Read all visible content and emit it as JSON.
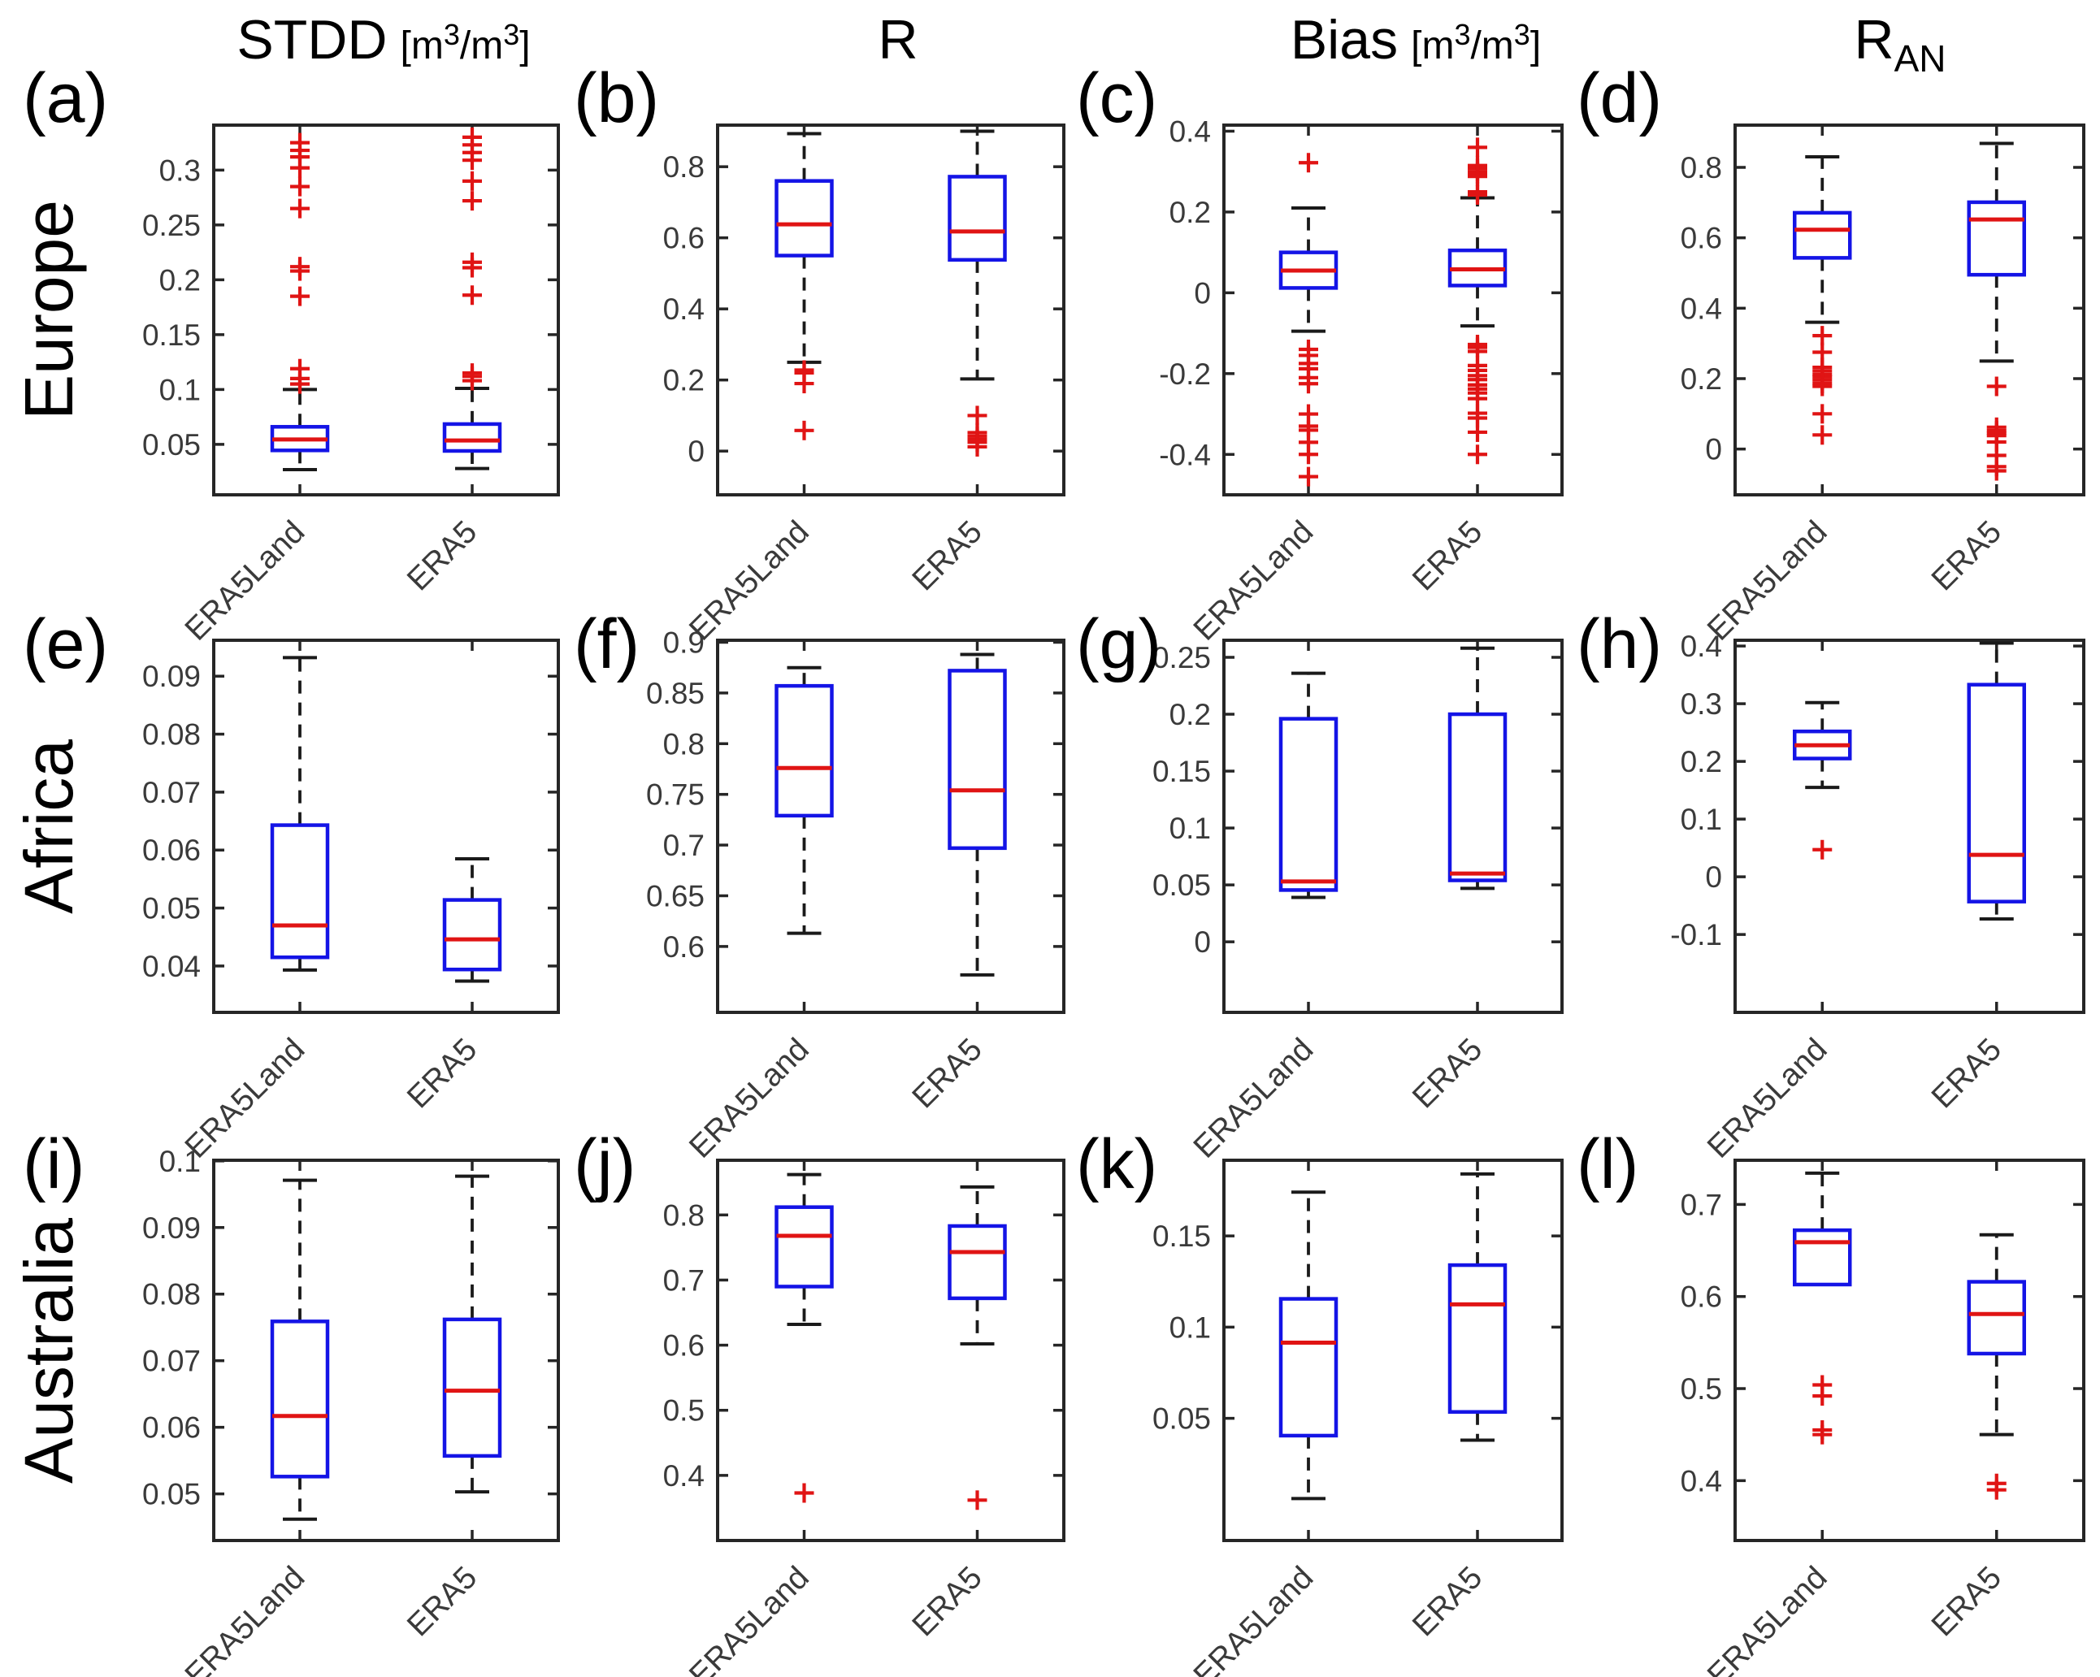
{
  "figure": {
    "columns": [
      {
        "label": "STDD",
        "unit": [
          "[m",
          "3",
          "/m",
          "3",
          "]"
        ]
      },
      {
        "label": "R"
      },
      {
        "label": "Bias",
        "unit": [
          "[m",
          "3",
          "/m",
          "3",
          "]"
        ]
      },
      {
        "label": "R",
        "sub": "AN"
      }
    ],
    "rows": [
      {
        "label": "Europe"
      },
      {
        "label": "Africa"
      },
      {
        "label": "Australia"
      }
    ]
  },
  "chart_data": {
    "type": "boxplot",
    "legend": "none",
    "box_color": "#1414e6",
    "median_color": "#e01414",
    "whisker_color": "#1a1a1a",
    "outlier_color": "#e01414",
    "x_categories": [
      "ERA5Land",
      "ERA5"
    ],
    "panels": [
      {
        "id": "a",
        "letter": "(a)",
        "region": "Europe",
        "metric": "STDD [m3/m3]",
        "ylim": [
          0.004,
          0.341
        ],
        "yticks": [
          0.05,
          0.1,
          0.15,
          0.2,
          0.25,
          0.3
        ],
        "ytick_labels": [
          "0.05",
          "0.1",
          "0.15",
          "0.2",
          "0.25",
          "0.3"
        ],
        "groups": [
          {
            "label": "ERA5Land",
            "whislo": 0.027,
            "q1": 0.0445,
            "med": 0.0545,
            "q3": 0.066,
            "whishi": 0.1,
            "outliers": [
              0.105,
              0.11,
              0.119,
              0.185,
              0.208,
              0.212,
              0.265,
              0.285,
              0.302,
              0.312,
              0.318,
              0.325
            ]
          },
          {
            "label": "ERA5",
            "whislo": 0.028,
            "q1": 0.044,
            "med": 0.0535,
            "q3": 0.0685,
            "whishi": 0.101,
            "outliers": [
              0.108,
              0.112,
              0.115,
              0.186,
              0.211,
              0.216,
              0.272,
              0.29,
              0.309,
              0.316,
              0.323,
              0.33
            ]
          }
        ]
      },
      {
        "id": "b",
        "letter": "(b)",
        "region": "Europe",
        "metric": "R",
        "ylim": [
          -0.123,
          0.917
        ],
        "yticks": [
          0,
          0.2,
          0.4,
          0.6,
          0.8
        ],
        "ytick_labels": [
          "0",
          "0.2",
          "0.4",
          "0.6",
          "0.8"
        ],
        "groups": [
          {
            "label": "ERA5Land",
            "whislo": 0.25,
            "q1": 0.55,
            "med": 0.638,
            "q3": 0.76,
            "whishi": 0.893,
            "outliers": [
              0.228,
              0.22,
              0.19,
              0.058
            ]
          },
          {
            "label": "ERA5",
            "whislo": 0.203,
            "q1": 0.538,
            "med": 0.618,
            "q3": 0.772,
            "whishi": 0.9,
            "outliers": [
              0.1,
              0.052,
              0.042,
              0.033,
              0.025,
              0.012
            ]
          }
        ]
      },
      {
        "id": "c",
        "letter": "(c)",
        "region": "Europe",
        "metric": "Bias [m3/m3]",
        "ylim": [
          -0.5,
          0.415
        ],
        "yticks": [
          -0.4,
          -0.2,
          0,
          0.2,
          0.4
        ],
        "ytick_labels": [
          "-0.4",
          "-0.2",
          "0",
          "0.2",
          "0.4"
        ],
        "groups": [
          {
            "label": "ERA5Land",
            "whislo": -0.095,
            "q1": 0.012,
            "med": 0.055,
            "q3": 0.1,
            "whishi": 0.21,
            "outliers": [
              0.322,
              -0.14,
              -0.155,
              -0.175,
              -0.188,
              -0.21,
              -0.225,
              -0.3,
              -0.33,
              -0.34,
              -0.37,
              -0.4,
              -0.455
            ]
          },
          {
            "label": "ERA5",
            "whislo": -0.082,
            "q1": 0.018,
            "med": 0.058,
            "q3": 0.105,
            "whishi": 0.235,
            "outliers": [
              0.36,
              0.315,
              0.308,
              0.3,
              0.295,
              0.288,
              0.25,
              0.242,
              -0.128,
              -0.135,
              -0.145,
              -0.18,
              -0.192,
              -0.205,
              -0.215,
              -0.228,
              -0.238,
              -0.248,
              -0.262,
              -0.298,
              -0.31,
              -0.345,
              -0.4
            ]
          }
        ]
      },
      {
        "id": "d",
        "letter": "(d)",
        "region": "Europe",
        "metric": "RAN",
        "ylim": [
          -0.13,
          0.92
        ],
        "yticks": [
          0,
          0.2,
          0.4,
          0.6,
          0.8
        ],
        "ytick_labels": [
          "0",
          "0.2",
          "0.4",
          "0.6",
          "0.8"
        ],
        "groups": [
          {
            "label": "ERA5Land",
            "whislo": 0.36,
            "q1": 0.543,
            "med": 0.623,
            "q3": 0.671,
            "whishi": 0.83,
            "outliers": [
              0.322,
              0.275,
              0.232,
              0.222,
              0.212,
              0.205,
              0.196,
              0.186,
              0.178,
              0.1,
              0.04
            ]
          },
          {
            "label": "ERA5",
            "whislo": 0.25,
            "q1": 0.495,
            "med": 0.652,
            "q3": 0.701,
            "whishi": 0.868,
            "outliers": [
              0.178,
              0.062,
              0.052,
              0.045,
              0.038,
              0.02,
              -0.018,
              -0.05,
              -0.062
            ]
          }
        ]
      },
      {
        "id": "e",
        "letter": "(e)",
        "region": "Africa",
        "metric": "STDD [m3/m3]",
        "ylim": [
          0.032,
          0.0962
        ],
        "yticks": [
          0.04,
          0.05,
          0.06,
          0.07,
          0.08,
          0.09
        ],
        "ytick_labels": [
          "0.04",
          "0.05",
          "0.06",
          "0.07",
          "0.08",
          "0.09"
        ],
        "groups": [
          {
            "label": "ERA5Land",
            "whislo": 0.0393,
            "q1": 0.0415,
            "med": 0.047,
            "q3": 0.0643,
            "whishi": 0.0932,
            "outliers": []
          },
          {
            "label": "ERA5",
            "whislo": 0.0374,
            "q1": 0.0394,
            "med": 0.0446,
            "q3": 0.0514,
            "whishi": 0.0585,
            "outliers": []
          }
        ]
      },
      {
        "id": "f",
        "letter": "(f)",
        "region": "Africa",
        "metric": "R",
        "ylim": [
          0.535,
          0.902
        ],
        "yticks": [
          0.6,
          0.65,
          0.7,
          0.75,
          0.8,
          0.85,
          0.9
        ],
        "ytick_labels": [
          "0.6",
          "0.65",
          "0.7",
          "0.75",
          "0.8",
          "0.85",
          "0.9"
        ],
        "groups": [
          {
            "label": "ERA5Land",
            "whislo": 0.613,
            "q1": 0.729,
            "med": 0.776,
            "q3": 0.857,
            "whishi": 0.875,
            "outliers": []
          },
          {
            "label": "ERA5",
            "whislo": 0.572,
            "q1": 0.697,
            "med": 0.754,
            "q3": 0.872,
            "whishi": 0.888,
            "outliers": []
          }
        ]
      },
      {
        "id": "g",
        "letter": "(g)",
        "region": "Africa",
        "metric": "Bias [m3/m3]",
        "ylim": [
          -0.062,
          0.265
        ],
        "yticks": [
          0,
          0.05,
          0.1,
          0.15,
          0.2,
          0.25
        ],
        "ytick_labels": [
          "0",
          "0.05",
          "0.1",
          "0.15",
          "0.2",
          "0.25"
        ],
        "groups": [
          {
            "label": "ERA5Land",
            "whislo": 0.039,
            "q1": 0.0455,
            "med": 0.053,
            "q3": 0.196,
            "whishi": 0.236,
            "outliers": []
          },
          {
            "label": "ERA5",
            "whislo": 0.047,
            "q1": 0.054,
            "med": 0.06,
            "q3": 0.2,
            "whishi": 0.258,
            "outliers": []
          }
        ]
      },
      {
        "id": "h",
        "letter": "(h)",
        "region": "Africa",
        "metric": "RAN",
        "ylim": [
          -0.235,
          0.41
        ],
        "yticks": [
          -0.1,
          0,
          0.1,
          0.2,
          0.3,
          0.4
        ],
        "ytick_labels": [
          "-0.1",
          "0",
          "0.1",
          "0.2",
          "0.3",
          "0.4"
        ],
        "groups": [
          {
            "label": "ERA5Land",
            "whislo": 0.155,
            "q1": 0.205,
            "med": 0.228,
            "q3": 0.252,
            "whishi": 0.302,
            "outliers": [
              0.047
            ]
          },
          {
            "label": "ERA5",
            "whislo": -0.073,
            "q1": -0.043,
            "med": 0.038,
            "q3": 0.333,
            "whishi": 0.405,
            "outliers": []
          }
        ]
      },
      {
        "id": "i",
        "letter": "(i)",
        "region": "Australia",
        "metric": "STDD [m3/m3]",
        "ylim": [
          0.043,
          0.1001
        ],
        "yticks": [
          0.05,
          0.06,
          0.07,
          0.08,
          0.09,
          0.1
        ],
        "ytick_labels": [
          "0.05",
          "0.06",
          "0.07",
          "0.08",
          "0.09",
          "0.1"
        ],
        "groups": [
          {
            "label": "ERA5Land",
            "whislo": 0.0462,
            "q1": 0.0526,
            "med": 0.0617,
            "q3": 0.0759,
            "whishi": 0.0971,
            "outliers": []
          },
          {
            "label": "ERA5",
            "whislo": 0.0503,
            "q1": 0.0557,
            "med": 0.0655,
            "q3": 0.0762,
            "whishi": 0.0977,
            "outliers": []
          }
        ]
      },
      {
        "id": "j",
        "letter": "(j)",
        "region": "Australia",
        "metric": "R",
        "ylim": [
          0.3,
          0.884
        ],
        "yticks": [
          0.4,
          0.5,
          0.6,
          0.7,
          0.8
        ],
        "ytick_labels": [
          "0.4",
          "0.5",
          "0.6",
          "0.7",
          "0.8"
        ],
        "groups": [
          {
            "label": "ERA5Land",
            "whislo": 0.632,
            "q1": 0.69,
            "med": 0.768,
            "q3": 0.812,
            "whishi": 0.862,
            "outliers": [
              0.373
            ]
          },
          {
            "label": "ERA5",
            "whislo": 0.602,
            "q1": 0.672,
            "med": 0.743,
            "q3": 0.783,
            "whishi": 0.843,
            "outliers": [
              0.362
            ]
          }
        ]
      },
      {
        "id": "k",
        "letter": "(k)",
        "region": "Australia",
        "metric": "Bias [m3/m3]",
        "ylim": [
          -0.017,
          0.1915
        ],
        "yticks": [
          0.05,
          0.1,
          0.15
        ],
        "ytick_labels": [
          "0.05",
          "0.1",
          "0.15"
        ],
        "groups": [
          {
            "label": "ERA5Land",
            "whislo": 0.006,
            "q1": 0.0405,
            "med": 0.0915,
            "q3": 0.1155,
            "whishi": 0.174,
            "outliers": []
          },
          {
            "label": "ERA5",
            "whislo": 0.038,
            "q1": 0.0535,
            "med": 0.1125,
            "q3": 0.134,
            "whishi": 0.184,
            "outliers": []
          }
        ]
      },
      {
        "id": "l",
        "letter": "(l)",
        "region": "Australia",
        "metric": "RAN",
        "ylim": [
          0.335,
          0.748
        ],
        "yticks": [
          0.4,
          0.5,
          0.6,
          0.7
        ],
        "ytick_labels": [
          "0.4",
          "0.5",
          "0.6",
          "0.7"
        ],
        "groups": [
          {
            "label": "ERA5Land",
            "whislo": 0.613,
            "q1": 0.613,
            "med": 0.659,
            "q3": 0.672,
            "whishi": 0.734,
            "outliers": [
              0.504,
              0.492,
              0.455,
              0.45
            ]
          },
          {
            "label": "ERA5",
            "whislo": 0.45,
            "q1": 0.538,
            "med": 0.581,
            "q3": 0.616,
            "whishi": 0.667,
            "outliers": [
              0.397,
              0.39
            ]
          }
        ]
      }
    ]
  }
}
